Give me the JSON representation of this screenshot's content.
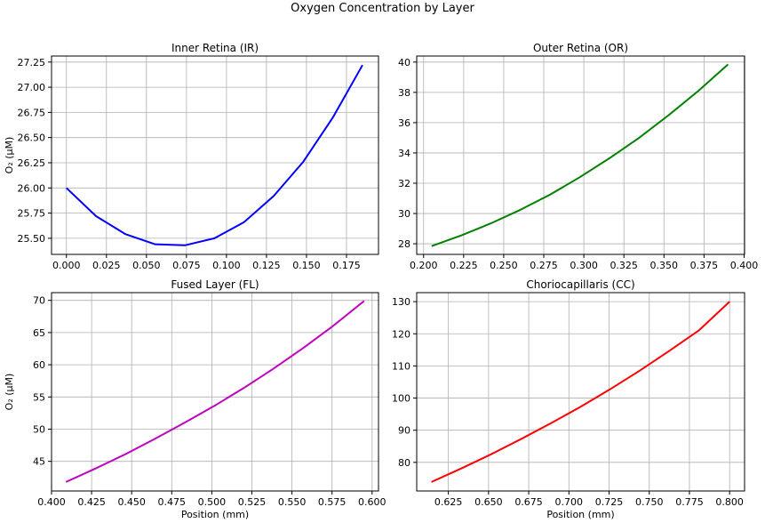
{
  "figure": {
    "suptitle": "Oxygen Concentration by Layer"
  },
  "chart_data": [
    {
      "type": "line",
      "title": "Inner Retina (IR)",
      "xlabel": "",
      "ylabel": "O₂ (µM)",
      "xlim": [
        -0.0093,
        0.195
      ],
      "ylim": [
        25.34,
        27.31
      ],
      "xticks": [
        "0.000",
        "0.025",
        "0.050",
        "0.075",
        "0.100",
        "0.125",
        "0.150",
        "0.175"
      ],
      "yticks": [
        "25.50",
        "25.75",
        "26.00",
        "26.25",
        "26.50",
        "26.75",
        "27.00",
        "27.25"
      ],
      "grid": true,
      "series": [
        {
          "color": "#0000ff",
          "x": [
            0.0,
            0.0185,
            0.037,
            0.0555,
            0.074,
            0.0925,
            0.111,
            0.1295,
            0.148,
            0.1665,
            0.185
          ],
          "y": [
            26.0,
            25.72,
            25.54,
            25.44,
            25.43,
            25.5,
            25.66,
            25.92,
            26.26,
            26.7,
            27.22
          ]
        }
      ]
    },
    {
      "type": "line",
      "title": "Outer Retina (OR)",
      "xlabel": "",
      "ylabel": "",
      "xlim": [
        0.1957,
        0.4003
      ],
      "ylim": [
        27.3,
        40.4
      ],
      "xticks": [
        "0.200",
        "0.225",
        "0.250",
        "0.275",
        "0.300",
        "0.325",
        "0.350",
        "0.375",
        "0.400"
      ],
      "yticks": [
        "28",
        "30",
        "32",
        "34",
        "36",
        "38",
        "40"
      ],
      "grid": true,
      "series": [
        {
          "color": "#008000",
          "x": [
            0.205,
            0.2235,
            0.242,
            0.2605,
            0.279,
            0.2975,
            0.316,
            0.3345,
            0.353,
            0.3715,
            0.39
          ],
          "y": [
            27.85,
            28.55,
            29.35,
            30.25,
            31.25,
            32.4,
            33.65,
            35.0,
            36.5,
            38.1,
            39.85
          ]
        }
      ]
    },
    {
      "type": "line",
      "title": "Fused Layer (FL)",
      "xlabel": "Position (mm)",
      "ylabel": "O₂ (µM)",
      "xlim": [
        0.4,
        0.604
      ],
      "ylim": [
        40.4,
        71.2
      ],
      "xticks": [
        "0.400",
        "0.425",
        "0.450",
        "0.475",
        "0.500",
        "0.525",
        "0.550",
        "0.575",
        "0.600"
      ],
      "yticks": [
        "45",
        "50",
        "55",
        "60",
        "65",
        "70"
      ],
      "grid": true,
      "series": [
        {
          "color": "#bf00bf",
          "x": [
            0.409,
            0.4275,
            0.446,
            0.4645,
            0.483,
            0.5015,
            0.52,
            0.5385,
            0.557,
            0.5755,
            0.595
          ],
          "y": [
            41.8,
            43.9,
            46.1,
            48.5,
            51.0,
            53.6,
            56.4,
            59.4,
            62.6,
            66.0,
            69.9
          ]
        }
      ]
    },
    {
      "type": "line",
      "title": "Choriocapillaris (CC)",
      "xlabel": "Position (mm)",
      "ylabel": "",
      "xlim": [
        0.6053,
        0.8093
      ],
      "ylim": [
        71.1,
        132.8
      ],
      "xticks": [
        "0.625",
        "0.650",
        "0.675",
        "0.700",
        "0.725",
        "0.750",
        "0.775",
        "0.800"
      ],
      "yticks": [
        "80",
        "90",
        "100",
        "110",
        "120",
        "130"
      ],
      "grid": true,
      "series": [
        {
          "color": "#ff0000",
          "x": [
            0.6145,
            0.633,
            0.6515,
            0.67,
            0.6885,
            0.707,
            0.7255,
            0.744,
            0.7625,
            0.781,
            0.8
          ],
          "y": [
            73.9,
            78.1,
            82.5,
            87.2,
            92.1,
            97.2,
            102.7,
            108.5,
            114.7,
            121.1,
            130.0
          ]
        }
      ]
    }
  ]
}
